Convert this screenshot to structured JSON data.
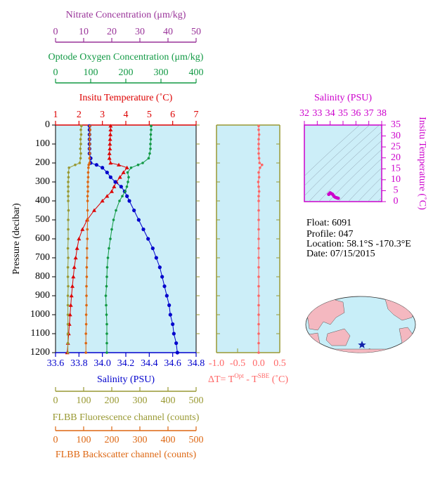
{
  "chart_data": [
    {
      "type": "profile",
      "y_label": "Pressure (decibar)",
      "ylim": [
        0,
        1200
      ],
      "y_inverted": true,
      "yticks": [
        0,
        100,
        200,
        300,
        400,
        500,
        600,
        700,
        800,
        900,
        1000,
        1100,
        1200
      ],
      "background": "#cceef8",
      "pressure": [
        5,
        25,
        50,
        75,
        100,
        125,
        150,
        175,
        200,
        210,
        225,
        250,
        275,
        300,
        325,
        350,
        375,
        400,
        450,
        500,
        550,
        600,
        650,
        700,
        750,
        800,
        850,
        900,
        950,
        1000,
        1050,
        1100,
        1150,
        1200
      ],
      "axes": [
        {
          "label": "Nitrate Concentration (μm/kg)",
          "color": "#993399",
          "lim": [
            0,
            50
          ],
          "ticks": [
            0,
            10,
            20,
            30,
            40,
            50
          ]
        },
        {
          "label": "Optode Oxygen Concentration (μm/kg)",
          "color": "#119944",
          "lim": [
            0,
            400
          ],
          "ticks": [
            0,
            100,
            200,
            300,
            400
          ]
        },
        {
          "label": "Insitu Temperature (˚C)",
          "color": "#dd0000",
          "lim": [
            1,
            7
          ],
          "ticks": [
            1,
            2,
            3,
            4,
            5,
            6,
            7
          ]
        },
        {
          "label": "Salinity (PSU)",
          "color": "#0000cc",
          "lim": [
            33.6,
            34.8
          ],
          "ticks": [
            33.6,
            33.8,
            {
              "value": 34,
              "label": "34.0"
            },
            34.2,
            34.4,
            34.6,
            34.8
          ]
        },
        {
          "label": "FLBB Fluorescence channel (counts)",
          "color": "#999933",
          "lim": [
            0,
            500
          ],
          "ticks": [
            0,
            100,
            200,
            300,
            400,
            500
          ]
        },
        {
          "label": "FLBB Backscatter channel (counts)",
          "color": "#dd6611",
          "lim": [
            0,
            500
          ],
          "ticks": [
            0,
            100,
            200,
            300,
            400,
            500
          ]
        }
      ],
      "series": [
        {
          "axis": 2,
          "color": "#dd0000",
          "marker": "triangle",
          "values": [
            3.35,
            3.35,
            3.34,
            3.33,
            3.32,
            3.32,
            3.3,
            3.3,
            3.35,
            3.7,
            4.05,
            3.9,
            3.75,
            3.6,
            3.5,
            3.4,
            3.2,
            3.0,
            2.65,
            2.35,
            2.15,
            2.0,
            1.92,
            1.86,
            1.8,
            1.76,
            1.72,
            1.68,
            1.65,
            1.62,
            1.59,
            1.56,
            1.53,
            1.5
          ]
        },
        {
          "axis": 3,
          "color": "#0000cc",
          "marker": "circle",
          "values": [
            33.89,
            33.89,
            33.89,
            33.89,
            33.89,
            33.89,
            33.89,
            33.9,
            33.9,
            33.95,
            34.0,
            34.04,
            34.07,
            34.11,
            34.16,
            34.19,
            34.21,
            34.23,
            34.27,
            34.31,
            34.35,
            34.39,
            34.43,
            34.46,
            34.49,
            34.51,
            34.53,
            34.55,
            34.57,
            34.58,
            34.6,
            34.61,
            34.63,
            34.64
          ]
        },
        {
          "axis": 1,
          "color": "#119944",
          "marker": "dot",
          "values": [
            272,
            272,
            271,
            271,
            270,
            270,
            268,
            265,
            248,
            235,
            215,
            205,
            208,
            206,
            203,
            198,
            190,
            182,
            172,
            165,
            160,
            156,
            152,
            149,
            147,
            146,
            145,
            143,
            144,
            145,
            146,
            146,
            146,
            146
          ]
        },
        {
          "axis": 4,
          "color": "#999933",
          "marker": "dot",
          "values": [
            92,
            90,
            91,
            89,
            90,
            88,
            90,
            89,
            86,
            70,
            48,
            46,
            46,
            45,
            45,
            45,
            45,
            45,
            46,
            45,
            45,
            45,
            44,
            45,
            44,
            44,
            45,
            44,
            44,
            44,
            44,
            44,
            44,
            44
          ]
        },
        {
          "axis": 5,
          "color": "#dd6611",
          "marker": "dot",
          "values": [
            122,
            123,
            122,
            121,
            122,
            121,
            122,
            121,
            121,
            118,
            117,
            116,
            116,
            115,
            115,
            115,
            114,
            114,
            114,
            114,
            113,
            113,
            112,
            112,
            111,
            111,
            110,
            110,
            110,
            109,
            109,
            108,
            108,
            108
          ]
        }
      ]
    },
    {
      "type": "profile-delta",
      "x_label": [
        "ΔT= T",
        "Opt",
        " - T",
        "SBE",
        " (˚C)"
      ],
      "color": "#ff6666",
      "frame_color": "#999933",
      "background": "#cceef8",
      "xlim": [
        -1,
        0.5
      ],
      "xticks": [
        {
          "value": -1,
          "label": "-1.0"
        },
        -0.5,
        {
          "value": 0,
          "label": "0.0"
        },
        0.5
      ],
      "values": [
        0,
        0,
        0.01,
        0,
        0,
        0,
        0,
        0.01,
        0.02,
        0.08,
        0.03,
        0,
        0.01,
        -0.01,
        0,
        0.01,
        0,
        0,
        0,
        0,
        0,
        0,
        0,
        0,
        0,
        0,
        0,
        0,
        0,
        0,
        0,
        0,
        0,
        0
      ]
    },
    {
      "type": "ts",
      "title": "Salinity (PSU)",
      "y_label": "Insitu Temperature (˚C)",
      "color": "#cc00cc",
      "background": "#cceef8",
      "xlim": [
        32,
        38
      ],
      "xticks": [
        32,
        33,
        34,
        35,
        36,
        37,
        38
      ],
      "ylim": [
        0,
        35
      ],
      "yticks": [
        0,
        5,
        10,
        15,
        20,
        25,
        30,
        35
      ]
    }
  ],
  "float_info": [
    "Float:  6091",
    "Profile:  047",
    "Location:  58.1°S  -170.3°E",
    "Date:  07/15/2015"
  ]
}
